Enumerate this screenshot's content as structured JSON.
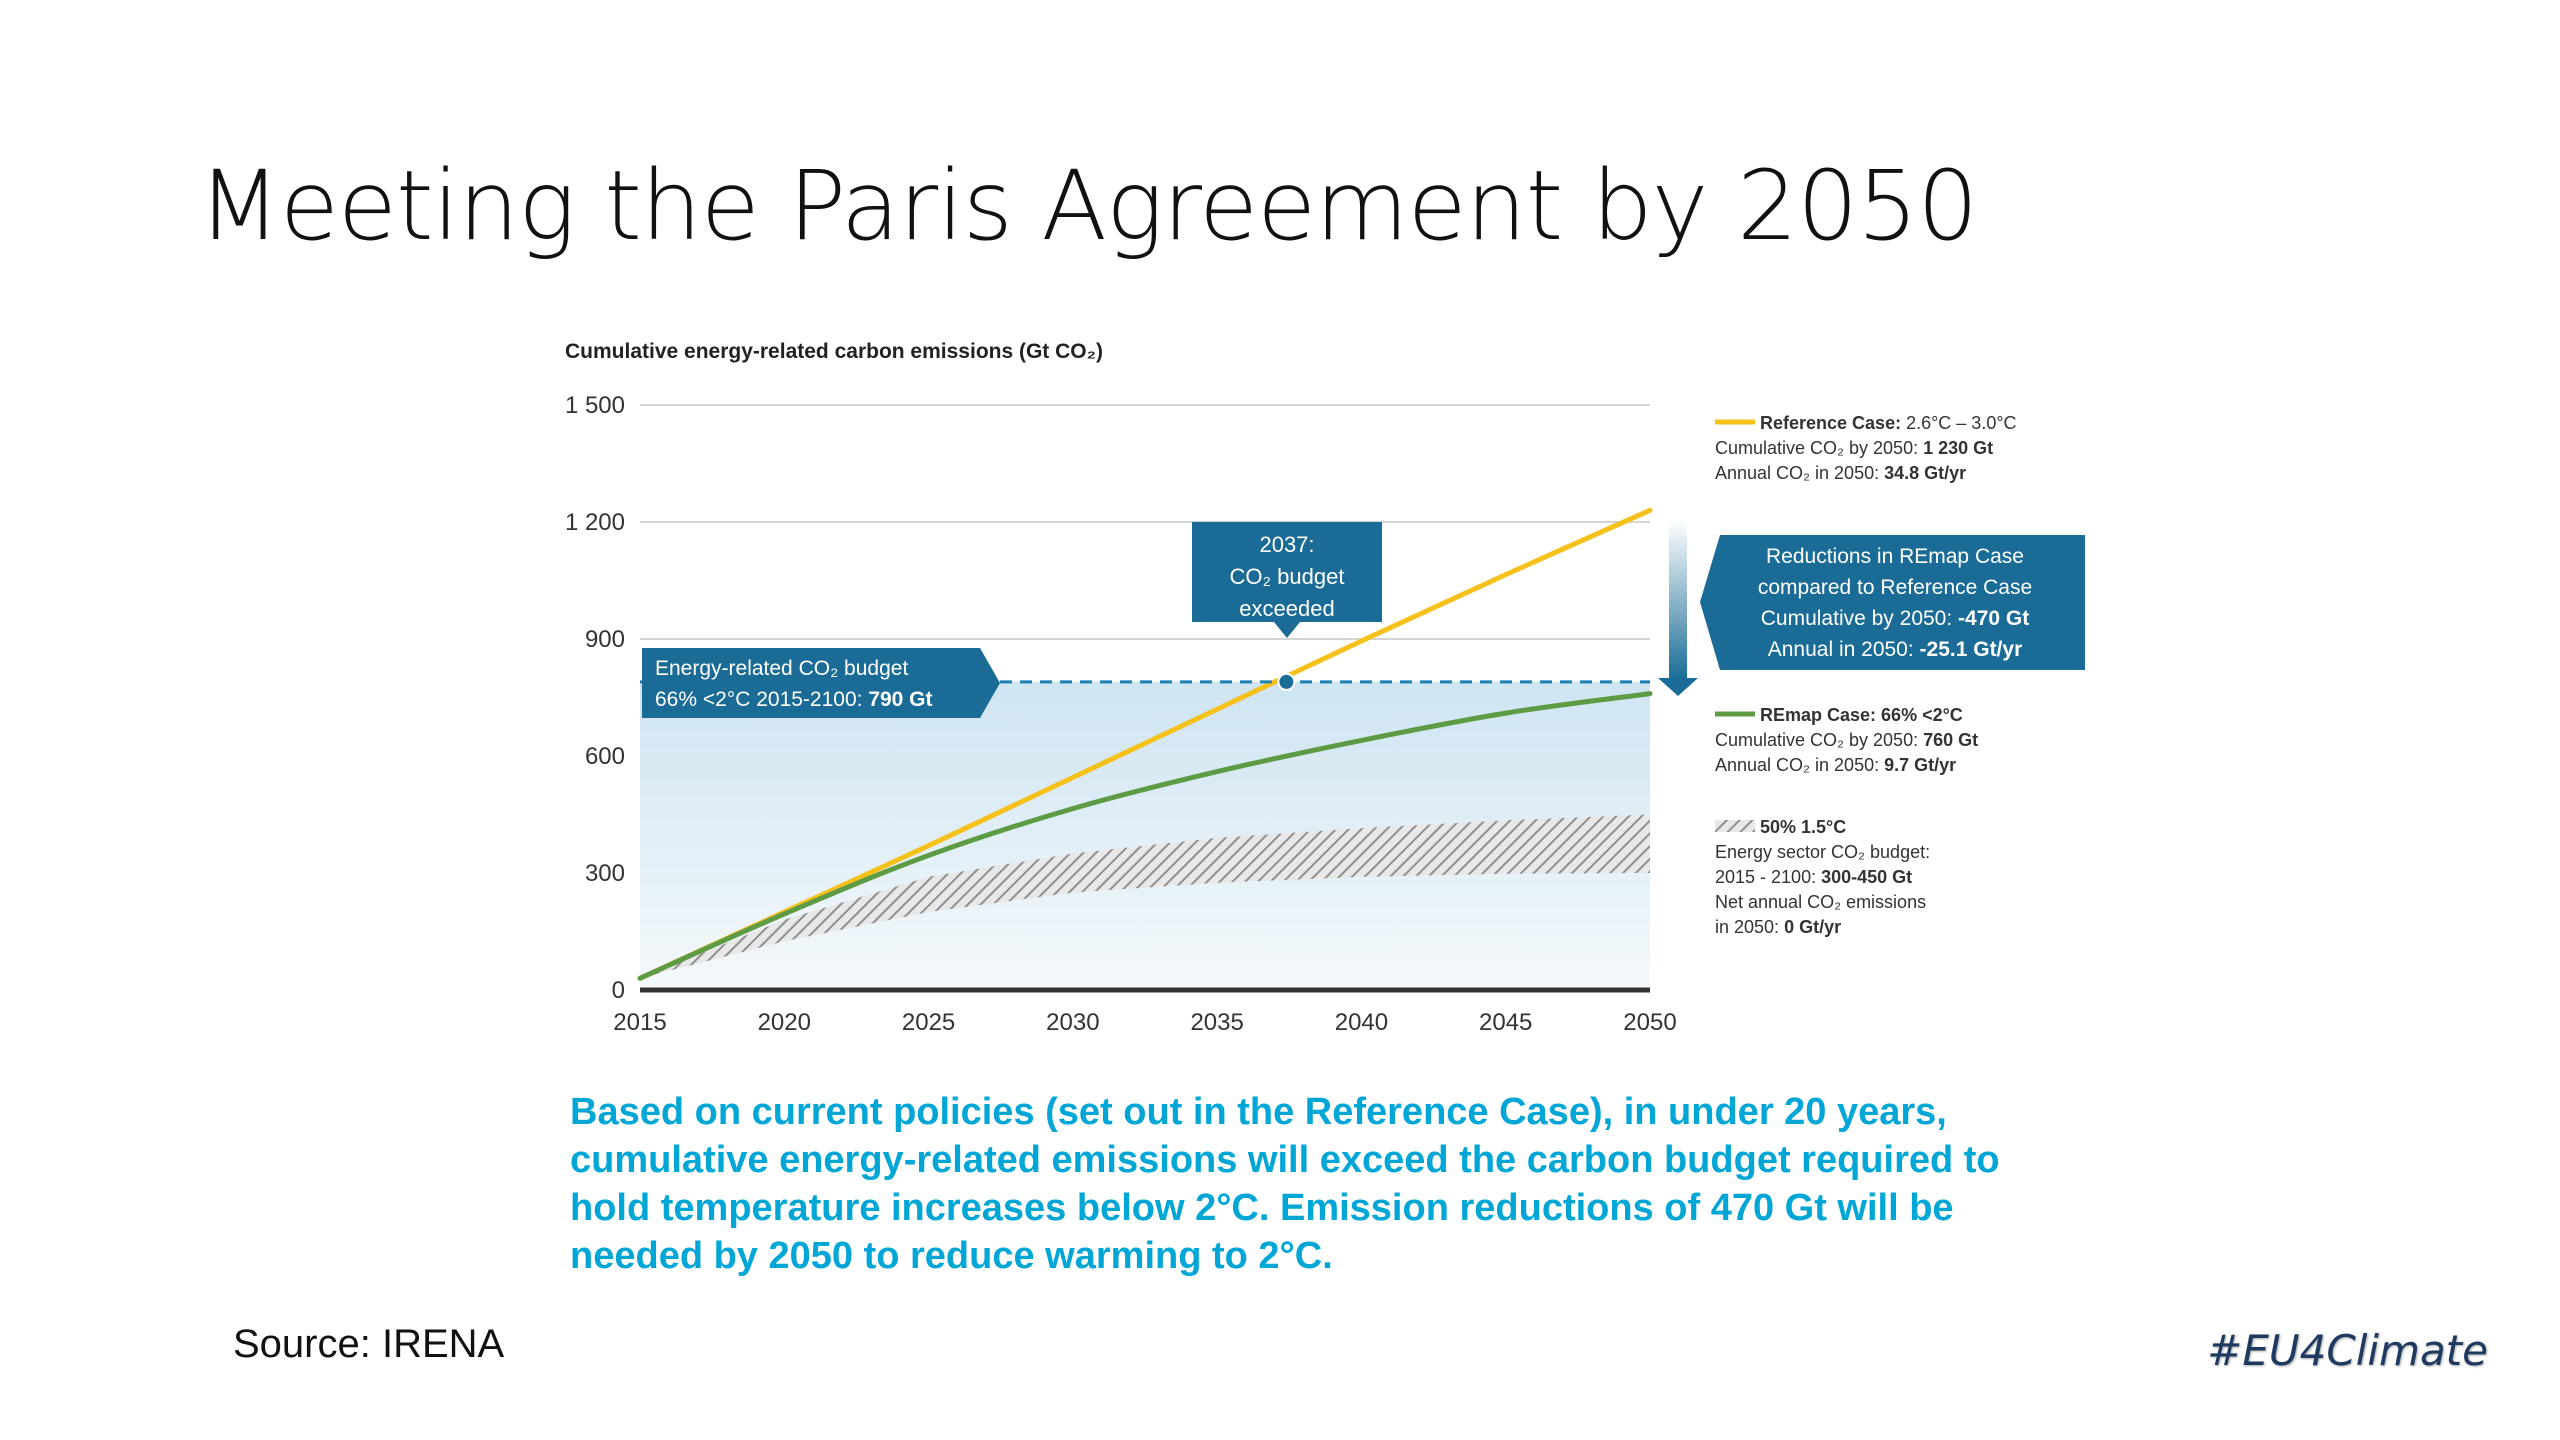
{
  "slide": {
    "title": "Meeting the Paris Agreement by 2050",
    "caption": "Based on current policies (set out in the Reference Case), in under 20 years, cumulative energy-related emissions will exceed the carbon budget required to hold temperature increases below 2°C. Emission reductions of 470 Gt will be needed by 2050 to reduce warming to 2°C.",
    "source": "Source: IRENA",
    "hashtag": "#EU4Climate"
  },
  "chart_data": {
    "type": "line",
    "title": "Cumulative energy-related carbon emissions (Gt CO₂)",
    "x_ticks": [
      "2015",
      "2020",
      "2025",
      "2030",
      "2035",
      "2040",
      "2045",
      "2050"
    ],
    "y_ticks": [
      "0",
      "300",
      "600",
      "900",
      "1 200",
      "1 500"
    ],
    "xlim": [
      2015,
      2050
    ],
    "ylim": [
      0,
      1500
    ],
    "grid": true,
    "legend_position": "right",
    "colors": {
      "reference": "#f5c11a",
      "remap": "#5e9b45",
      "budget_line": "#1e7fb3",
      "callout": "#1a6c96",
      "hatch": "#9a9a9a",
      "budget_fill": "#dcecf6",
      "axis": "#333333"
    },
    "series": [
      {
        "name": "Reference Case",
        "x": [
          2015,
          2020,
          2025,
          2030,
          2035,
          2040,
          2045,
          2050
        ],
        "values": [
          30,
          200,
          370,
          545,
          720,
          895,
          1065,
          1230
        ]
      },
      {
        "name": "REmap Case",
        "x": [
          2015,
          2020,
          2025,
          2030,
          2035,
          2040,
          2045,
          2050
        ],
        "values": [
          30,
          195,
          345,
          465,
          560,
          640,
          710,
          760
        ]
      }
    ],
    "band": {
      "name": "50% 1.5°C",
      "x": [
        2015,
        2020,
        2025,
        2030,
        2035,
        2040,
        2045,
        2050
      ],
      "lower": [
        30,
        125,
        200,
        250,
        275,
        290,
        298,
        300
      ],
      "upper": [
        30,
        180,
        290,
        350,
        390,
        415,
        435,
        450
      ]
    },
    "budget": {
      "value": 790,
      "label_line1": "Energy-related CO₂ budget",
      "label_line2_prefix": "66% <2°C 2015-2100: ",
      "label_line2_bold": "790 Gt"
    },
    "exceed_point": {
      "x": 2037.4,
      "y": 790,
      "label": [
        "2037:",
        "CO₂ budget",
        "exceeded"
      ]
    },
    "reduction_box": {
      "lines": [
        "Reductions in REmap Case",
        "compared to Reference Case"
      ],
      "cum_prefix": "Cumulative by 2050: ",
      "cum_bold": "-470 Gt",
      "annual_prefix": "Annual in 2050: ",
      "annual_bold": "-25.1 Gt/yr"
    },
    "legend": [
      {
        "key": "reference",
        "title_bold": "Reference Case: ",
        "title_rest": "2.6°C – 3.0°C",
        "line2_prefix": "Cumulative CO₂ by 2050: ",
        "line2_bold": "1 230 Gt",
        "line3_prefix": "Annual CO₂ in 2050: ",
        "line3_bold": "34.8 Gt/yr"
      },
      {
        "key": "remap",
        "title_bold": "REmap Case: 66% <2°C",
        "title_rest": "",
        "line2_prefix": "Cumulative CO₂ by 2050: ",
        "line2_bold": "760 Gt",
        "line3_prefix": "Annual CO₂ in 2050: ",
        "line3_bold": "9.7 Gt/yr"
      },
      {
        "key": "band",
        "title_bold": "50% 1.5°C",
        "lines": [
          "Energy sector CO₂ budget:",
          "2015 - 2100: ",
          "Net annual CO₂ emissions",
          "in 2050: "
        ],
        "bold": [
          "300-450 Gt",
          "0 Gt/yr"
        ]
      }
    ]
  }
}
